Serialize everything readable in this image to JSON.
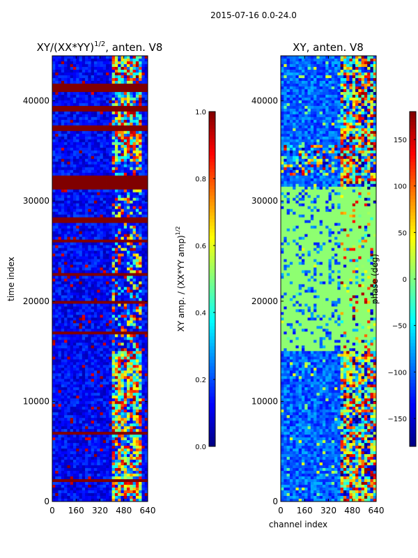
{
  "figure": {
    "suptitle": "2015-07-16 0.0-24.0"
  },
  "chart_data": [
    {
      "type": "heatmap",
      "title_main": "XY/(XX*YY)",
      "title_exp": "1/2",
      "title_tail": ", anten. V8",
      "xlabel": "",
      "ylabel": "time index",
      "xlim": [
        0,
        640
      ],
      "ylim": [
        0,
        44500
      ],
      "xticks": [
        0,
        160,
        320,
        480,
        640
      ],
      "yticks": [
        0,
        10000,
        20000,
        30000,
        40000
      ],
      "colormap": "jet",
      "colorbar": {
        "label_main": "XY amp. / (XX*YY amp)",
        "label_exp": "1/2",
        "range": [
          0.0,
          1.0
        ],
        "ticks": [
          "0.0",
          "0.2",
          "0.4",
          "0.6",
          "0.8",
          "1.0"
        ],
        "tick_values": [
          0.0,
          0.2,
          0.4,
          0.6,
          0.8,
          1.0
        ]
      },
      "background_value": 0.05,
      "active_channel_band": [
        400,
        600
      ],
      "saturated_time_bands": [
        [
          31200,
          32600
        ],
        [
          37000,
          37500
        ],
        [
          39000,
          39500
        ],
        [
          41000,
          41800
        ],
        [
          27800,
          28300
        ],
        [
          25800,
          26200
        ],
        [
          22400,
          22700
        ],
        [
          19800,
          20000
        ],
        [
          16800,
          17000
        ],
        [
          12500,
          12600
        ],
        [
          6800,
          6900
        ],
        [
          2000,
          2100
        ]
      ]
    },
    {
      "type": "heatmap",
      "title": "XY, anten. V8",
      "xlabel": "channel index",
      "ylabel": "",
      "xlim": [
        0,
        640
      ],
      "ylim": [
        0,
        44500
      ],
      "xticks": [
        0,
        160,
        320,
        480,
        640
      ],
      "yticks": [
        0,
        10000,
        20000,
        30000,
        40000
      ],
      "colormap": "jet",
      "colorbar": {
        "label": "phase (deg)",
        "range": [
          -180,
          180
        ],
        "ticks": [
          "150",
          "100",
          "50",
          "0",
          "−50",
          "−100",
          "−150"
        ],
        "tick_values": [
          150,
          100,
          50,
          0,
          -50,
          -100,
          -150
        ]
      },
      "background_value": -130,
      "flagged_value": 5,
      "flagged_time_band": [
        15000,
        31500
      ],
      "active_channel_band": [
        400,
        640
      ]
    }
  ]
}
